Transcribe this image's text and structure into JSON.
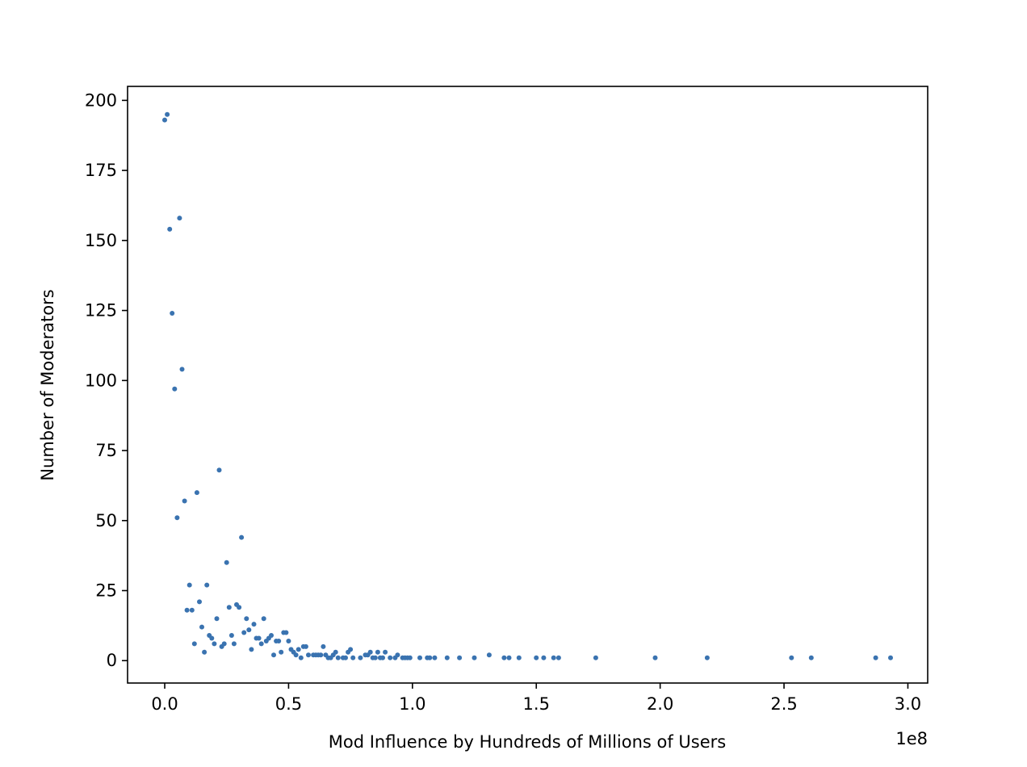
{
  "chart_data": {
    "type": "scatter",
    "title": "",
    "xlabel": "Mod Influence by Hundreds of Millions of Users",
    "ylabel": "Number of Moderators",
    "x_offset_label": "1e8",
    "xlim": [
      -0.15,
      3.08
    ],
    "ylim": [
      -8,
      205
    ],
    "x_ticks": [
      0.0,
      0.5,
      1.0,
      1.5,
      2.0,
      2.5,
      3.0
    ],
    "x_tick_labels": [
      "0.0",
      "0.5",
      "1.0",
      "1.5",
      "2.0",
      "2.5",
      "3.0"
    ],
    "y_ticks": [
      0,
      25,
      50,
      75,
      100,
      125,
      150,
      175,
      200
    ],
    "y_tick_labels": [
      "0",
      "25",
      "50",
      "75",
      "100",
      "125",
      "150",
      "175",
      "200"
    ],
    "grid": false,
    "marker_color": "#3a73b0",
    "points": [
      [
        0.0,
        193
      ],
      [
        0.01,
        195
      ],
      [
        0.02,
        154
      ],
      [
        0.03,
        124
      ],
      [
        0.04,
        97
      ],
      [
        0.05,
        51
      ],
      [
        0.06,
        158
      ],
      [
        0.07,
        104
      ],
      [
        0.08,
        57
      ],
      [
        0.09,
        18
      ],
      [
        0.1,
        27
      ],
      [
        0.11,
        18
      ],
      [
        0.12,
        6
      ],
      [
        0.13,
        60
      ],
      [
        0.14,
        21
      ],
      [
        0.15,
        12
      ],
      [
        0.16,
        3
      ],
      [
        0.17,
        27
      ],
      [
        0.18,
        9
      ],
      [
        0.19,
        8
      ],
      [
        0.2,
        6
      ],
      [
        0.21,
        15
      ],
      [
        0.22,
        68
      ],
      [
        0.23,
        5
      ],
      [
        0.24,
        6
      ],
      [
        0.25,
        35
      ],
      [
        0.26,
        19
      ],
      [
        0.27,
        9
      ],
      [
        0.28,
        6
      ],
      [
        0.29,
        20
      ],
      [
        0.3,
        19
      ],
      [
        0.31,
        44
      ],
      [
        0.32,
        10
      ],
      [
        0.33,
        15
      ],
      [
        0.34,
        11
      ],
      [
        0.35,
        4
      ],
      [
        0.36,
        13
      ],
      [
        0.37,
        8
      ],
      [
        0.38,
        8
      ],
      [
        0.39,
        6
      ],
      [
        0.4,
        15
      ],
      [
        0.41,
        7
      ],
      [
        0.42,
        8
      ],
      [
        0.43,
        9
      ],
      [
        0.44,
        2
      ],
      [
        0.45,
        7
      ],
      [
        0.46,
        7
      ],
      [
        0.47,
        3
      ],
      [
        0.48,
        10
      ],
      [
        0.49,
        10
      ],
      [
        0.5,
        7
      ],
      [
        0.51,
        4
      ],
      [
        0.52,
        3
      ],
      [
        0.53,
        2
      ],
      [
        0.54,
        4
      ],
      [
        0.55,
        1
      ],
      [
        0.56,
        5
      ],
      [
        0.57,
        5
      ],
      [
        0.58,
        2
      ],
      [
        0.6,
        2
      ],
      [
        0.61,
        2
      ],
      [
        0.62,
        2
      ],
      [
        0.63,
        2
      ],
      [
        0.64,
        5
      ],
      [
        0.65,
        2
      ],
      [
        0.66,
        1
      ],
      [
        0.67,
        1
      ],
      [
        0.68,
        2
      ],
      [
        0.69,
        3
      ],
      [
        0.7,
        1
      ],
      [
        0.72,
        1
      ],
      [
        0.73,
        1
      ],
      [
        0.74,
        3
      ],
      [
        0.75,
        4
      ],
      [
        0.76,
        1
      ],
      [
        0.79,
        1
      ],
      [
        0.81,
        2
      ],
      [
        0.82,
        2
      ],
      [
        0.83,
        3
      ],
      [
        0.84,
        1
      ],
      [
        0.85,
        1
      ],
      [
        0.86,
        3
      ],
      [
        0.87,
        1
      ],
      [
        0.88,
        1
      ],
      [
        0.89,
        3
      ],
      [
        0.91,
        1
      ],
      [
        0.93,
        1
      ],
      [
        0.94,
        2
      ],
      [
        0.96,
        1
      ],
      [
        0.97,
        1
      ],
      [
        0.98,
        1
      ],
      [
        0.99,
        1
      ],
      [
        1.03,
        1
      ],
      [
        1.06,
        1
      ],
      [
        1.07,
        1
      ],
      [
        1.09,
        1
      ],
      [
        1.14,
        1
      ],
      [
        1.19,
        1
      ],
      [
        1.25,
        1
      ],
      [
        1.31,
        2
      ],
      [
        1.37,
        1
      ],
      [
        1.39,
        1
      ],
      [
        1.43,
        1
      ],
      [
        1.5,
        1
      ],
      [
        1.53,
        1
      ],
      [
        1.57,
        1
      ],
      [
        1.59,
        1
      ],
      [
        1.74,
        1
      ],
      [
        1.98,
        1
      ],
      [
        2.19,
        1
      ],
      [
        2.53,
        1
      ],
      [
        2.61,
        1
      ],
      [
        2.87,
        1
      ],
      [
        2.93,
        1
      ]
    ]
  }
}
